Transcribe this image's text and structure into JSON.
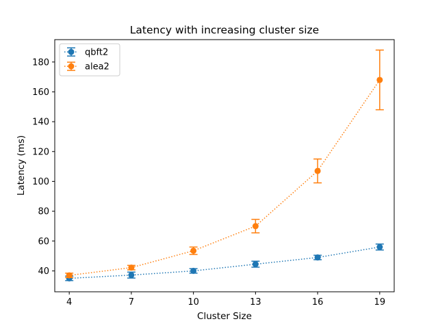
{
  "chart_data": {
    "type": "line",
    "title": "Latency with increasing cluster size",
    "xlabel": "Cluster Size",
    "ylabel": "Latency (ms)",
    "x": [
      4,
      7,
      10,
      13,
      16,
      19
    ],
    "xlim": [
      3.3,
      19.7
    ],
    "ylim": [
      26,
      195
    ],
    "yticks": [
      40,
      60,
      80,
      100,
      120,
      140,
      160,
      180
    ],
    "grid": false,
    "legend_position": "top-left",
    "series": [
      {
        "name": "qbft2",
        "color": "#1f77b4",
        "line_style": "dotted",
        "marker": "circle",
        "values": [
          35,
          37.2,
          40,
          44.5,
          49,
          56
        ],
        "errors": [
          1.5,
          2,
          1.5,
          2,
          1.5,
          2
        ]
      },
      {
        "name": "alea2",
        "color": "#ff7f0e",
        "line_style": "dotted",
        "marker": "circle",
        "values": [
          37,
          42.2,
          53.5,
          70,
          107,
          168
        ],
        "errors": [
          1.5,
          1.5,
          2.5,
          4.5,
          8,
          20
        ]
      }
    ]
  }
}
